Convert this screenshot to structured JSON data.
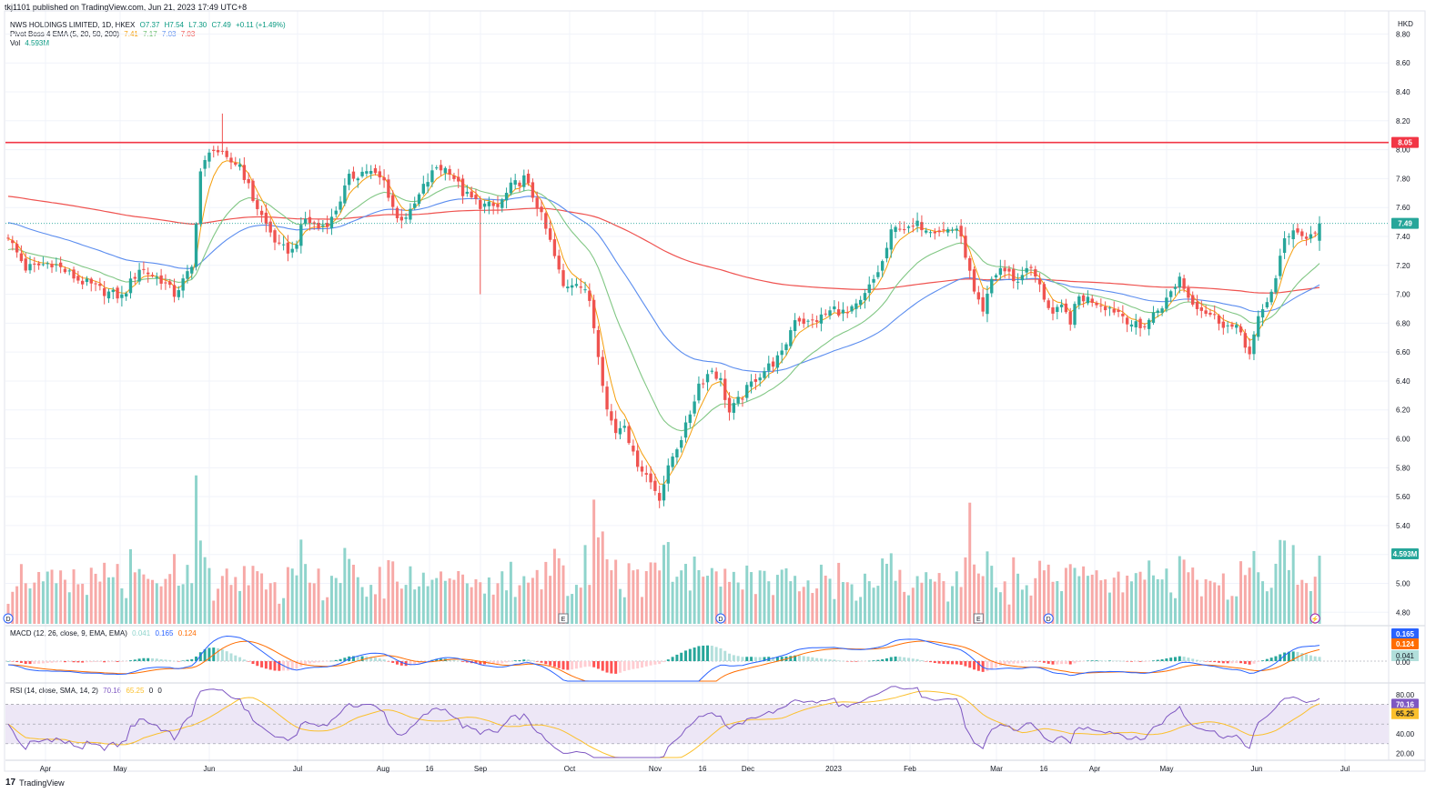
{
  "header": {
    "publish_line": "tkj1101 published on TradingView.com, Jun 21, 2023 17:49 UTC+8",
    "currency": "HKD"
  },
  "legends": {
    "main": {
      "symbol": "NWS HOLDINGS LIMITED, 1D, HKEX",
      "o": "O7.37",
      "h": "H7.54",
      "l": "L7.30",
      "c": "C7.49",
      "chg": "+0.11 (+1.49%)"
    },
    "ema": {
      "label": "Pivot Boss 4 EMA (5, 20, 50, 200)",
      "v5": "7.41",
      "v20": "7.17",
      "v50": "7.03",
      "v200": "7.03"
    },
    "vol": {
      "label": "Vol",
      "value": "4.593M"
    },
    "macd": {
      "label": "MACD (12, 26, close, 9, EMA, EMA)",
      "hist": "0.041",
      "macd": "0.165",
      "signal": "0.124"
    },
    "rsi": {
      "label": "RSI (14, close, SMA, 14, 2)",
      "rsi": "70.16",
      "ma": "65.25",
      "a": "0",
      "b": "0"
    }
  },
  "footer": {
    "brand": "TradingView"
  },
  "colors": {
    "up": "#26a69a",
    "down": "#ef5350",
    "vol_up": "#8fd4cc",
    "vol_down": "#f7a9a7",
    "ema5": "#f59e0b",
    "ema20": "#81c784",
    "ema50": "#5b8def",
    "ema200": "#ef5350",
    "resistance": "#f23645",
    "macd": "#2962ff",
    "signal": "#ff6d00",
    "rsi": "#7e57c2",
    "rsi_ma": "#fbc02d",
    "rsi_band": "#ede7f6"
  },
  "chart_data": {
    "type": "candlestick",
    "x_labels": [
      "Apr",
      "May",
      "Jun",
      "Jul",
      "Aug",
      "16",
      "Sep",
      "Oct",
      "Nov",
      "16",
      "Dec",
      "2023",
      "Feb",
      "Mar",
      "16",
      "Apr",
      "May",
      "Jun",
      "Jul"
    ],
    "price_axis": {
      "ticks": [
        "8.80",
        "8.60",
        "8.40",
        "8.20",
        "8.00",
        "7.80",
        "7.60",
        "7.40",
        "7.20",
        "7.00",
        "6.80",
        "6.60",
        "6.40",
        "6.20",
        "6.00",
        "5.80",
        "5.60",
        "5.40",
        "5.20",
        "5.00",
        "4.80"
      ],
      "range": [
        4.72,
        8.96
      ]
    },
    "resistance_level": {
      "value": 8.05,
      "label": "8.05"
    },
    "last_price": {
      "value": 7.49,
      "label": "7.49"
    },
    "volume_label": "4.593M",
    "close_keypoints": [
      [
        0,
        7.39
      ],
      [
        4,
        7.18
      ],
      [
        10,
        7.22
      ],
      [
        16,
        7.1
      ],
      [
        22,
        7.02
      ],
      [
        26,
        6.98
      ],
      [
        30,
        7.18
      ],
      [
        35,
        7.1
      ],
      [
        38,
        7.0
      ],
      [
        42,
        7.18
      ],
      [
        44,
        7.85
      ],
      [
        47,
        8.02
      ],
      [
        50,
        7.92
      ],
      [
        53,
        7.9
      ],
      [
        56,
        7.66
      ],
      [
        59,
        7.48
      ],
      [
        62,
        7.32
      ],
      [
        65,
        7.3
      ],
      [
        68,
        7.52
      ],
      [
        71,
        7.46
      ],
      [
        74,
        7.52
      ],
      [
        78,
        7.8
      ],
      [
        82,
        7.86
      ],
      [
        86,
        7.78
      ],
      [
        89,
        7.52
      ],
      [
        92,
        7.56
      ],
      [
        95,
        7.74
      ],
      [
        98,
        7.88
      ],
      [
        101,
        7.86
      ],
      [
        104,
        7.7
      ],
      [
        108,
        7.62
      ],
      [
        112,
        7.6
      ],
      [
        115,
        7.74
      ],
      [
        118,
        7.8
      ],
      [
        121,
        7.62
      ],
      [
        124,
        7.36
      ],
      [
        127,
        7.05
      ],
      [
        130,
        7.1
      ],
      [
        133,
        6.96
      ],
      [
        135,
        6.6
      ],
      [
        137,
        6.2
      ],
      [
        139,
        6.05
      ],
      [
        141,
        6.12
      ],
      [
        143,
        5.88
      ],
      [
        146,
        5.75
      ],
      [
        149,
        5.6
      ],
      [
        152,
        5.88
      ],
      [
        155,
        6.08
      ],
      [
        158,
        6.38
      ],
      [
        161,
        6.48
      ],
      [
        163,
        6.4
      ],
      [
        165,
        6.18
      ],
      [
        168,
        6.3
      ],
      [
        171,
        6.42
      ],
      [
        174,
        6.5
      ],
      [
        177,
        6.58
      ],
      [
        180,
        6.84
      ],
      [
        183,
        6.8
      ],
      [
        186,
        6.84
      ],
      [
        189,
        6.9
      ],
      [
        192,
        6.86
      ],
      [
        195,
        6.94
      ],
      [
        198,
        7.1
      ],
      [
        200,
        7.22
      ],
      [
        202,
        7.42
      ],
      [
        204,
        7.48
      ],
      [
        206,
        7.44
      ],
      [
        208,
        7.48
      ],
      [
        211,
        7.46
      ],
      [
        214,
        7.44
      ],
      [
        217,
        7.46
      ],
      [
        219,
        7.28
      ],
      [
        221,
        7.0
      ],
      [
        223,
        6.86
      ],
      [
        225,
        7.1
      ],
      [
        227,
        7.18
      ],
      [
        229,
        7.14
      ],
      [
        231,
        7.08
      ],
      [
        233,
        7.2
      ],
      [
        235,
        7.12
      ],
      [
        237,
        6.98
      ],
      [
        239,
        6.86
      ],
      [
        241,
        6.9
      ],
      [
        243,
        6.82
      ],
      [
        245,
        6.98
      ],
      [
        248,
        6.96
      ],
      [
        251,
        6.92
      ],
      [
        254,
        6.88
      ],
      [
        257,
        6.8
      ],
      [
        259,
        6.76
      ],
      [
        262,
        6.86
      ],
      [
        265,
        6.96
      ],
      [
        268,
        7.12
      ],
      [
        270,
        6.98
      ],
      [
        273,
        6.9
      ],
      [
        276,
        6.84
      ],
      [
        279,
        6.78
      ],
      [
        282,
        6.74
      ],
      [
        284,
        6.58
      ],
      [
        286,
        6.82
      ],
      [
        288,
        6.96
      ],
      [
        290,
        7.1
      ],
      [
        292,
        7.38
      ],
      [
        294,
        7.46
      ],
      [
        296,
        7.4
      ],
      [
        298,
        7.4
      ],
      [
        300,
        7.49
      ]
    ],
    "ema_start": {
      "ema5": 7.38,
      "ema20": 7.3,
      "ema50": 7.5,
      "ema200": 7.68
    },
    "macd_axis": {
      "ticks": [
        "0.165",
        "0.124",
        "0.041",
        "0.00"
      ]
    },
    "rsi_axis": {
      "ticks": [
        "80.00",
        "70.16",
        "65.25",
        "40.00",
        "20.00"
      ],
      "range": [
        15,
        90
      ],
      "upper": 70,
      "lower": 30
    },
    "events": [
      {
        "bar": 0,
        "glyph": "D"
      },
      {
        "bar": 127,
        "glyph": "E"
      },
      {
        "bar": 163,
        "glyph": "D"
      },
      {
        "bar": 222,
        "glyph": "E"
      },
      {
        "bar": 238,
        "glyph": "D"
      },
      {
        "bar": 299,
        "glyph": "⚡"
      }
    ]
  }
}
